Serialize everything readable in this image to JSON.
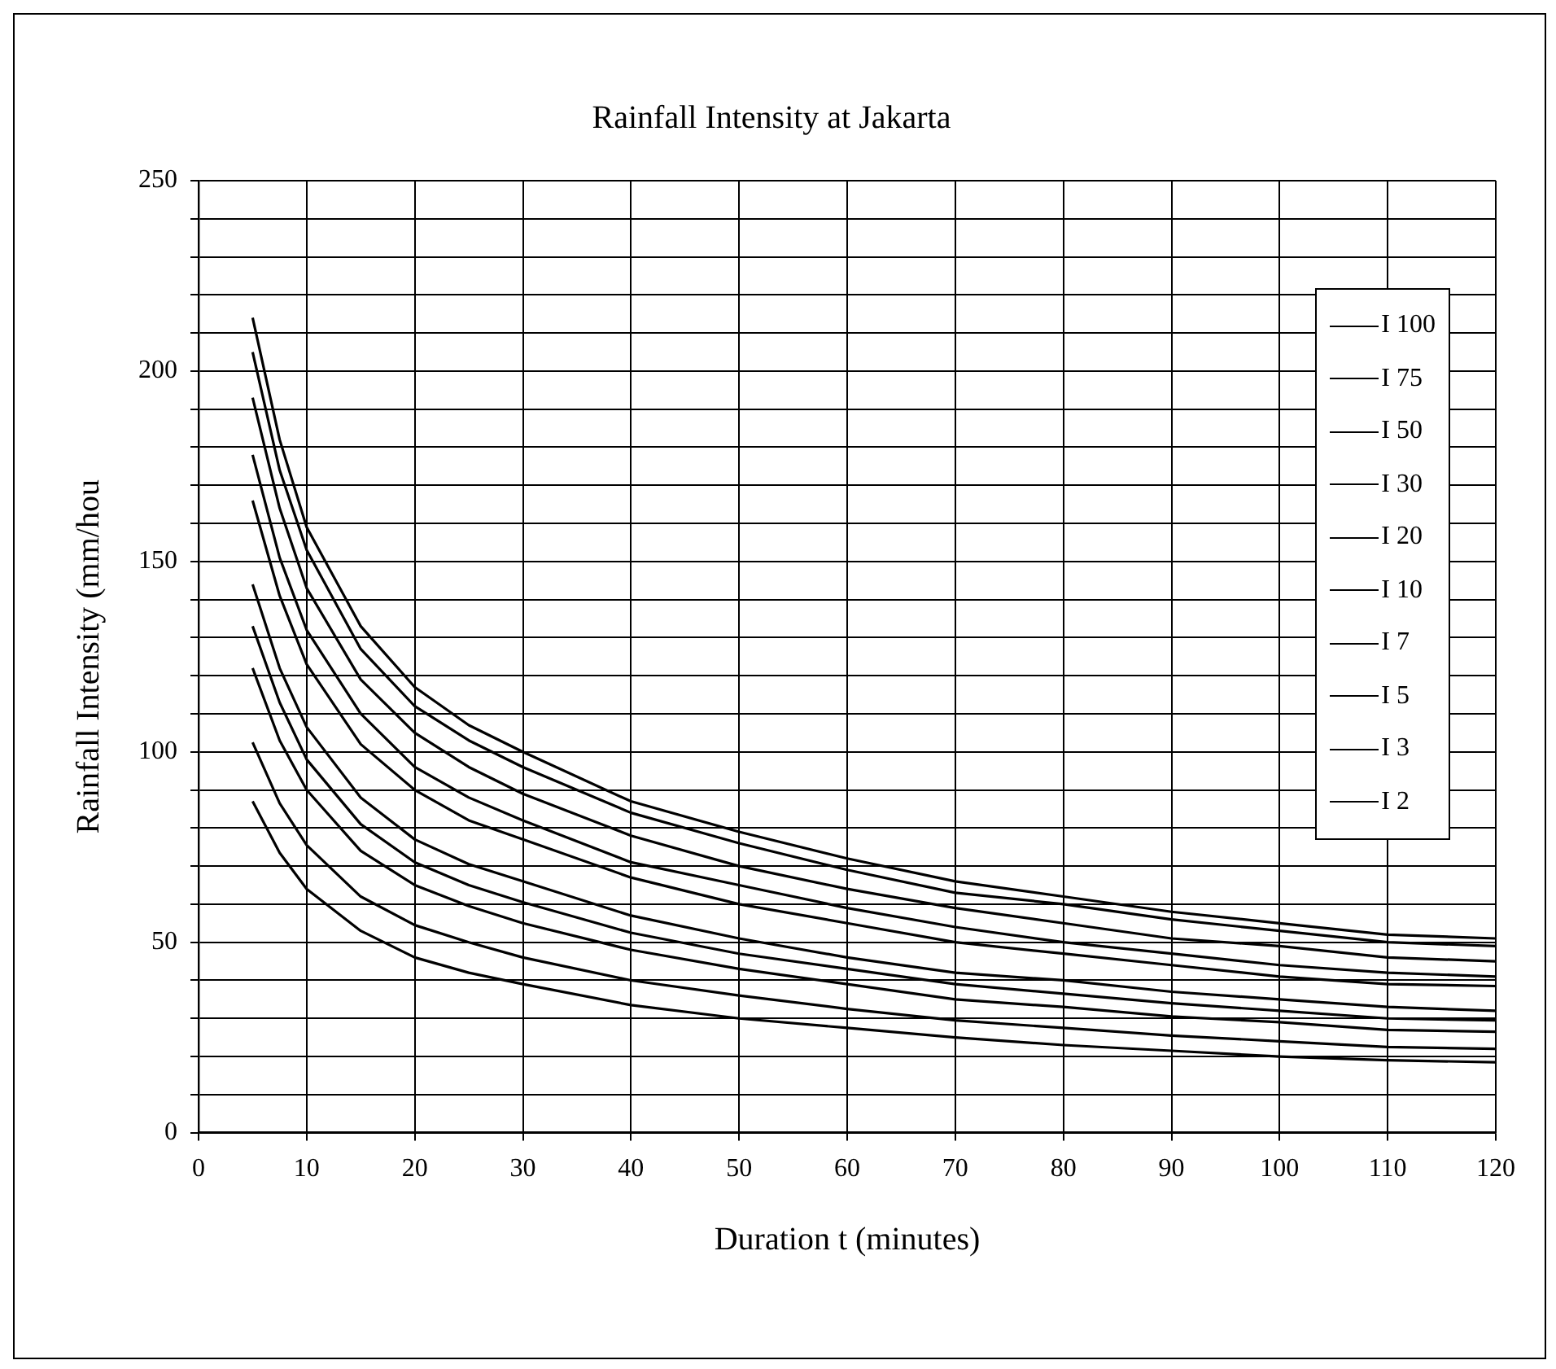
{
  "chart_data": {
    "type": "line",
    "title": "Rainfall Intensity at Jakarta",
    "xlabel": "Duration t (minutes)",
    "ylabel": "Rainfall Intensity (mm/hou",
    "x": [
      5,
      7.5,
      10,
      15,
      20,
      25,
      30,
      40,
      50,
      60,
      70,
      80,
      90,
      100,
      110,
      120
    ],
    "series": [
      {
        "name": "I 100",
        "color": "#000000",
        "values": [
          214,
          182,
          159,
          133,
          117,
          107,
          100,
          87,
          79,
          72,
          66,
          62,
          58,
          55,
          52,
          51
        ]
      },
      {
        "name": "I 75",
        "color": "#000000",
        "values": [
          205,
          174,
          153,
          127,
          112,
          103,
          96,
          84,
          76,
          69,
          63,
          60,
          56,
          53,
          50,
          49
        ]
      },
      {
        "name": "I 50",
        "color": "#000000",
        "values": [
          193,
          164,
          143,
          119,
          105,
          96,
          89,
          78,
          70,
          64,
          59,
          55,
          51,
          49,
          46,
          45
        ]
      },
      {
        "name": "I 30",
        "color": "#000000",
        "values": [
          178,
          151,
          132,
          110,
          96,
          88,
          82,
          71,
          65,
          59,
          54,
          50,
          47,
          44,
          42,
          41
        ]
      },
      {
        "name": "I 20",
        "color": "#000000",
        "values": [
          166,
          141,
          123,
          102,
          90,
          82,
          77,
          67,
          60,
          55,
          50,
          47,
          44,
          41,
          39,
          38.5
        ]
      },
      {
        "name": "I 10",
        "color": "#000000",
        "values": [
          144,
          122,
          106.5,
          88,
          77,
          70.5,
          66,
          57,
          51,
          46,
          42,
          40,
          37,
          35,
          33,
          32
        ]
      },
      {
        "name": "I 7",
        "color": "#000000",
        "values": [
          133,
          113,
          98,
          81,
          71,
          65,
          60.5,
          52.5,
          47,
          43,
          39,
          36.5,
          34,
          32,
          30,
          29.5
        ]
      },
      {
        "name": "I 5",
        "color": "#000000",
        "values": [
          122,
          103,
          90,
          74,
          65,
          59.5,
          55,
          48,
          43,
          39,
          35,
          33,
          30.5,
          29,
          27,
          26.5
        ]
      },
      {
        "name": "I 3",
        "color": "#000000",
        "values": [
          102.5,
          86.5,
          75.5,
          62,
          54.5,
          50,
          46,
          40,
          36,
          32.5,
          29.5,
          27.5,
          25.5,
          24,
          22.5,
          22
        ]
      },
      {
        "name": "I 2",
        "color": "#000000",
        "values": [
          87,
          73.5,
          64,
          53,
          46,
          42,
          39,
          33.5,
          30,
          27.5,
          25,
          23,
          21.5,
          20,
          19,
          18.5
        ]
      }
    ],
    "xlim": [
      0,
      120
    ],
    "xticks": [
      0,
      10,
      20,
      30,
      40,
      50,
      60,
      70,
      80,
      90,
      100,
      110,
      120
    ],
    "ylim": [
      0,
      250
    ],
    "yticks": [
      0,
      {
        "value": 10,
        "label": null
      },
      {
        "value": 20,
        "label": null
      },
      {
        "value": 30,
        "label": null
      },
      {
        "value": 40,
        "label": null
      },
      50,
      {
        "value": 60,
        "label": null
      },
      {
        "value": 70,
        "label": null
      },
      {
        "value": 80,
        "label": null
      },
      {
        "value": 90,
        "label": null
      },
      100,
      {
        "value": 110,
        "label": null
      },
      {
        "value": 120,
        "label": null
      },
      {
        "value": 130,
        "label": null
      },
      {
        "value": 140,
        "label": null
      },
      150,
      {
        "value": 160,
        "label": null
      },
      {
        "value": 170,
        "label": null
      },
      {
        "value": 180,
        "label": null
      },
      {
        "value": 190,
        "label": null
      },
      200,
      {
        "value": 210,
        "label": null
      },
      {
        "value": 220,
        "label": null
      },
      {
        "value": 230,
        "label": null
      },
      {
        "value": 240,
        "label": null
      },
      250
    ],
    "grid": true,
    "legend": "top right",
    "marker": "none",
    "line_style": "solid"
  }
}
